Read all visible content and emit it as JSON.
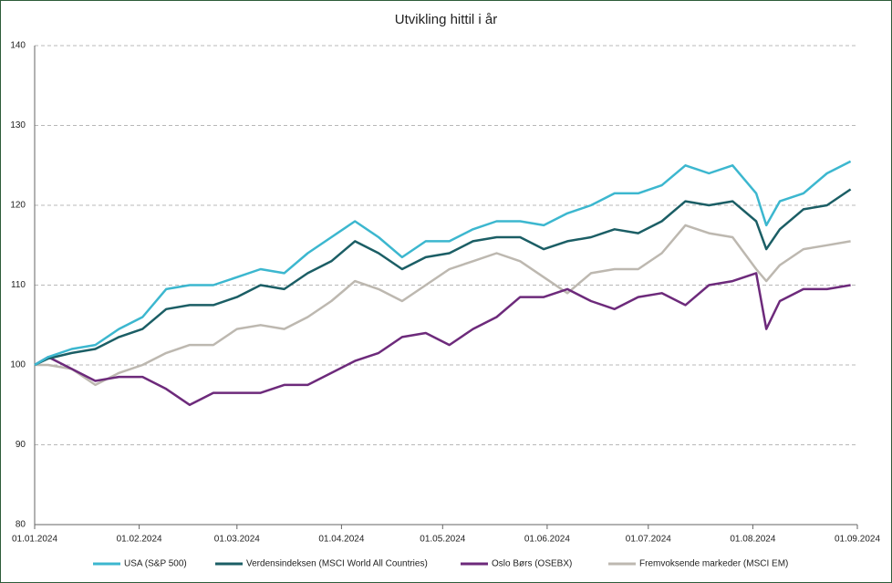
{
  "chart_data": {
    "type": "line",
    "title": "Utvikling hittil i år",
    "x": [
      "01.01.2024",
      "05.01.2024",
      "12.01.2024",
      "19.01.2024",
      "26.01.2024",
      "02.02.2024",
      "09.02.2024",
      "16.02.2024",
      "23.02.2024",
      "01.03.2024",
      "08.03.2024",
      "15.03.2024",
      "22.03.2024",
      "29.03.2024",
      "05.04.2024",
      "12.04.2024",
      "19.04.2024",
      "26.04.2024",
      "03.05.2024",
      "10.05.2024",
      "17.05.2024",
      "24.05.2024",
      "31.05.2024",
      "07.06.2024",
      "14.06.2024",
      "21.06.2024",
      "28.06.2024",
      "05.07.2024",
      "12.07.2024",
      "19.07.2024",
      "26.07.2024",
      "02.08.2024",
      "05.08.2024",
      "09.08.2024",
      "16.08.2024",
      "23.08.2024",
      "30.08.2024"
    ],
    "series": [
      {
        "name": "USA (S&P 500)",
        "color": "#3cb7cf",
        "values": [
          100,
          101,
          102,
          102.5,
          104.5,
          106,
          109.5,
          110,
          110,
          111,
          112,
          111.5,
          114,
          116,
          118,
          116,
          113.5,
          115.5,
          115.5,
          117,
          118,
          118,
          117.5,
          119,
          120,
          121.5,
          121.5,
          122.5,
          125,
          124,
          125,
          121.5,
          117.5,
          120.5,
          121.5,
          124,
          125.5
        ]
      },
      {
        "name": "Verdensindeksen (MSCI World All Countries)",
        "color": "#1b5e65",
        "values": [
          100,
          100.8,
          101.5,
          102,
          103.5,
          104.5,
          107,
          107.5,
          107.5,
          108.5,
          110,
          109.5,
          111.5,
          113,
          115.5,
          114,
          112,
          113.5,
          114,
          115.5,
          116,
          116,
          114.5,
          115.5,
          116,
          117,
          116.5,
          118,
          120.5,
          120,
          120.5,
          118,
          114.5,
          117,
          119.5,
          120,
          122
        ]
      },
      {
        "name": "Oslo Børs (OSEBX)",
        "color": "#6d2a7b",
        "values": [
          100,
          101,
          99.5,
          98,
          98.5,
          98.5,
          97,
          95,
          96.5,
          96.5,
          96.5,
          97.5,
          97.5,
          99,
          100.5,
          101.5,
          103.5,
          104,
          102.5,
          104.5,
          106,
          108.5,
          108.5,
          109.5,
          108,
          107,
          108.5,
          109,
          107.5,
          110,
          110.5,
          111.5,
          104.5,
          108,
          109.5,
          109.5,
          110
        ]
      },
      {
        "name": "Fremvoksende markeder (MSCI EM)",
        "color": "#bdb8b0",
        "values": [
          100,
          100,
          99.5,
          97.5,
          99,
          100,
          101.5,
          102.5,
          102.5,
          104.5,
          105,
          104.5,
          106,
          108,
          110.5,
          109.5,
          108,
          110,
          112,
          113,
          114,
          113,
          111,
          109,
          111.5,
          112,
          112,
          114,
          117.5,
          116.5,
          116,
          112,
          110.5,
          112.5,
          114.5,
          115,
          115.5
        ]
      }
    ],
    "xlim": [
      "01.01.2024",
      "01.09.2024"
    ],
    "xticks": [
      "01.01.2024",
      "01.02.2024",
      "01.03.2024",
      "01.04.2024",
      "01.05.2024",
      "01.06.2024",
      "01.07.2024",
      "01.08.2024",
      "01.09.2024"
    ],
    "ylim": [
      80,
      140
    ],
    "yticks": [
      80,
      90,
      100,
      110,
      120,
      130,
      140
    ],
    "grid": true,
    "legend": "bottom"
  }
}
